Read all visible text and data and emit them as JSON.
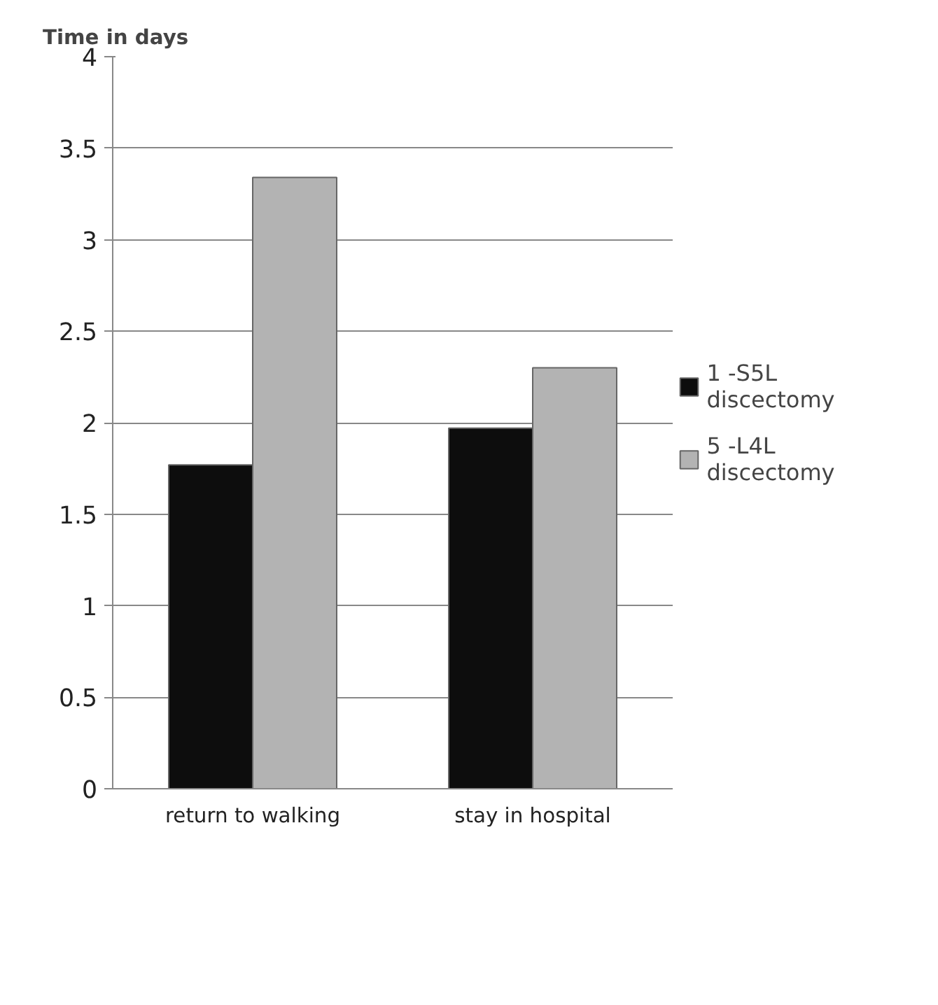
{
  "chart_data": {
    "type": "bar",
    "ylabel": "Time in days",
    "categories": [
      "return to walking",
      "stay in hospital"
    ],
    "series": [
      {
        "name": "1 -S5L discectomy",
        "color": "#0d0d0d",
        "values": [
          1.77,
          1.97
        ]
      },
      {
        "name": "5 -L4L discectomy",
        "color": "#b3b3b3",
        "values": [
          3.34,
          2.3
        ]
      }
    ],
    "ylim": [
      0,
      4
    ],
    "yticks": [
      0,
      0.5,
      1,
      1.5,
      2,
      2.5,
      3,
      3.5,
      4
    ],
    "grid": "y",
    "legend": "right"
  }
}
